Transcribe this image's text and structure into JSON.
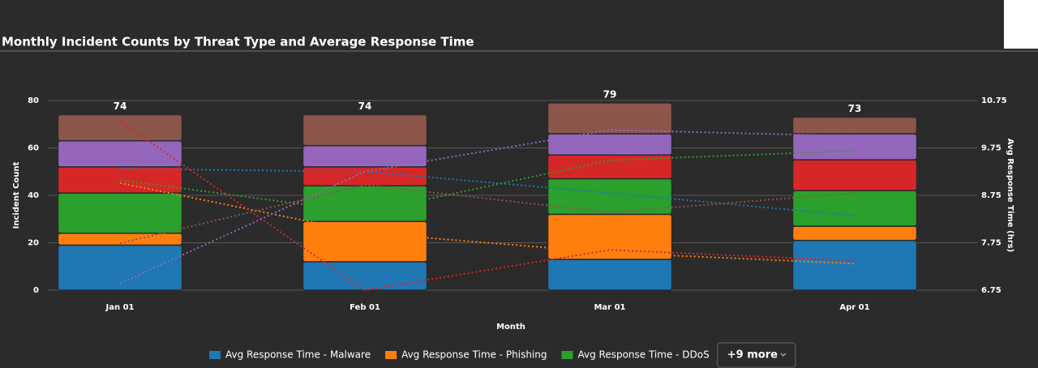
{
  "chart_data": {
    "type": "bar",
    "title": "Monthly Incident Counts by Threat Type and Average Response Time",
    "x_label": "Month",
    "y_label": "Incident Count",
    "y2_label": "Avg Response Time (hrs)",
    "categories": [
      "Jan 01",
      "Feb 01",
      "Mar 01",
      "Apr 01"
    ],
    "ylim": [
      0,
      80
    ],
    "yticks": [
      0,
      20,
      40,
      60,
      80
    ],
    "y2lim": [
      6.75,
      10.75
    ],
    "y2ticks": [
      6.75,
      7.75,
      8.75,
      9.75,
      10.75
    ],
    "grid": true,
    "totals": [
      74,
      74,
      79,
      73
    ],
    "series": [
      {
        "type": "bar",
        "color": "#1f77b4",
        "values": [
          19,
          12,
          13,
          21
        ]
      },
      {
        "type": "bar",
        "color": "#ff7f0e",
        "values": [
          5,
          17,
          19,
          6
        ]
      },
      {
        "type": "bar",
        "color": "#2ca02c",
        "values": [
          17,
          15,
          15,
          15
        ]
      },
      {
        "type": "bar",
        "color": "#d62728",
        "values": [
          11,
          8,
          10,
          13
        ]
      },
      {
        "type": "bar",
        "color": "#9467bd",
        "values": [
          11,
          9,
          9,
          11
        ]
      },
      {
        "type": "bar",
        "color": "#8c564b",
        "values": [
          11,
          13,
          13,
          7
        ]
      },
      {
        "type": "line",
        "axis": "y2",
        "name": "Avg Response Time - Malware",
        "color": "#1f77b4",
        "values": [
          9.31,
          9.25,
          8.8,
          8.32
        ]
      },
      {
        "type": "line",
        "axis": "y2",
        "name": "Avg Response Time - Phishing",
        "color": "#ff7f0e",
        "values": [
          9.01,
          7.96,
          7.54,
          7.31
        ]
      },
      {
        "type": "line",
        "axis": "y2",
        "name": "Avg Response Time - DDoS",
        "color": "#2ca02c",
        "values": [
          9.07,
          8.39,
          9.49,
          9.69
        ]
      },
      {
        "type": "line",
        "axis": "y2",
        "color": "#d62728",
        "values": [
          10.31,
          6.75,
          7.6,
          7.37
        ]
      },
      {
        "type": "line",
        "axis": "y2",
        "color": "#9467bd",
        "values": [
          6.89,
          9.25,
          10.13,
          10.0
        ]
      },
      {
        "type": "line",
        "axis": "y2",
        "color": "#8c564b",
        "values": [
          7.74,
          8.97,
          8.39,
          8.8
        ]
      }
    ],
    "legend_more": "+9 more"
  }
}
